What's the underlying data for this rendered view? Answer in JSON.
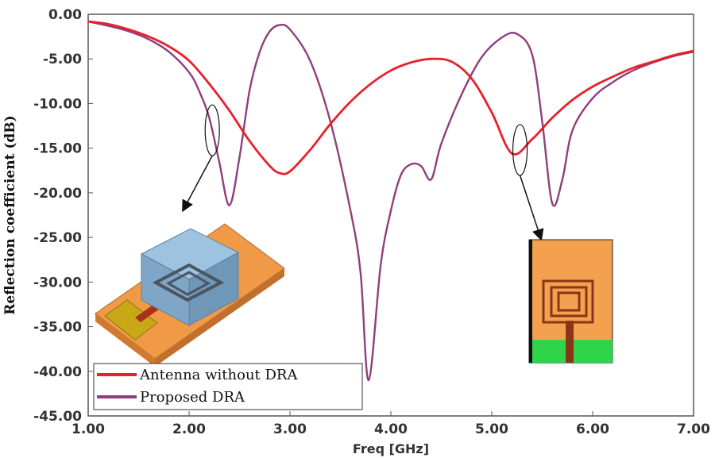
{
  "chart_data": {
    "type": "line",
    "title": "",
    "xlabel": "Freq [GHz]",
    "ylabel": "Reflection coefficient (dB)",
    "xlim": [
      1.0,
      7.0
    ],
    "ylim": [
      -45.0,
      0.0
    ],
    "x_ticks": [
      "1.00",
      "2.00",
      "3.00",
      "4.00",
      "5.00",
      "6.00",
      "7.00"
    ],
    "y_ticks": [
      "0.00",
      "-5.00",
      "-10.00",
      "-15.00",
      "-20.00",
      "-25.00",
      "-30.00",
      "-35.00",
      "-40.00",
      "-45.00"
    ],
    "grid": false,
    "legend_position": "bottom-left",
    "series": [
      {
        "name": "Antenna without DRA",
        "color": "#e8202a",
        "points": [
          [
            1.0,
            -0.8
          ],
          [
            1.2,
            -1.1
          ],
          [
            1.4,
            -1.7
          ],
          [
            1.6,
            -2.5
          ],
          [
            1.8,
            -3.6
          ],
          [
            2.0,
            -5.2
          ],
          [
            2.2,
            -7.8
          ],
          [
            2.4,
            -10.8
          ],
          [
            2.6,
            -14.2
          ],
          [
            2.8,
            -17.0
          ],
          [
            2.9,
            -17.8
          ],
          [
            3.0,
            -17.6
          ],
          [
            3.2,
            -15.2
          ],
          [
            3.4,
            -12.3
          ],
          [
            3.6,
            -9.8
          ],
          [
            3.8,
            -7.8
          ],
          [
            4.0,
            -6.3
          ],
          [
            4.2,
            -5.4
          ],
          [
            4.4,
            -5.0
          ],
          [
            4.6,
            -5.3
          ],
          [
            4.8,
            -7.2
          ],
          [
            5.0,
            -11.0
          ],
          [
            5.2,
            -15.6
          ],
          [
            5.4,
            -14.0
          ],
          [
            5.6,
            -11.6
          ],
          [
            5.8,
            -9.6
          ],
          [
            6.0,
            -8.1
          ],
          [
            6.2,
            -7.0
          ],
          [
            6.4,
            -6.0
          ],
          [
            6.6,
            -5.3
          ],
          [
            6.8,
            -4.6
          ],
          [
            7.0,
            -4.1
          ]
        ]
      },
      {
        "name": "Proposed DRA",
        "color": "#8e3f7e",
        "points": [
          [
            1.0,
            -0.8
          ],
          [
            1.2,
            -1.3
          ],
          [
            1.4,
            -1.9
          ],
          [
            1.6,
            -2.8
          ],
          [
            1.8,
            -4.2
          ],
          [
            2.0,
            -6.5
          ],
          [
            2.1,
            -8.6
          ],
          [
            2.2,
            -11.6
          ],
          [
            2.3,
            -16.6
          ],
          [
            2.4,
            -21.4
          ],
          [
            2.5,
            -16.0
          ],
          [
            2.6,
            -8.5
          ],
          [
            2.7,
            -4.2
          ],
          [
            2.8,
            -1.9
          ],
          [
            2.9,
            -1.2
          ],
          [
            3.0,
            -1.7
          ],
          [
            3.2,
            -5.2
          ],
          [
            3.4,
            -12.0
          ],
          [
            3.6,
            -22.0
          ],
          [
            3.7,
            -29.0
          ],
          [
            3.78,
            -41.0
          ],
          [
            3.9,
            -28.0
          ],
          [
            4.0,
            -22.0
          ],
          [
            4.1,
            -18.0
          ],
          [
            4.2,
            -16.8
          ],
          [
            4.3,
            -17.0
          ],
          [
            4.4,
            -18.5
          ],
          [
            4.5,
            -14.5
          ],
          [
            4.7,
            -9.0
          ],
          [
            4.9,
            -4.8
          ],
          [
            5.1,
            -2.6
          ],
          [
            5.25,
            -2.2
          ],
          [
            5.4,
            -4.5
          ],
          [
            5.5,
            -12.0
          ],
          [
            5.6,
            -21.2
          ],
          [
            5.7,
            -18.5
          ],
          [
            5.8,
            -13.0
          ],
          [
            6.0,
            -9.4
          ],
          [
            6.2,
            -7.6
          ],
          [
            6.4,
            -6.3
          ],
          [
            6.6,
            -5.4
          ],
          [
            6.8,
            -4.7
          ],
          [
            7.0,
            -4.2
          ]
        ]
      }
    ],
    "annotations": [
      {
        "name": "low-band-marker",
        "x": 2.23,
        "y": -13.0
      },
      {
        "name": "high-band-marker",
        "x": 5.28,
        "y": -15.2
      }
    ]
  }
}
